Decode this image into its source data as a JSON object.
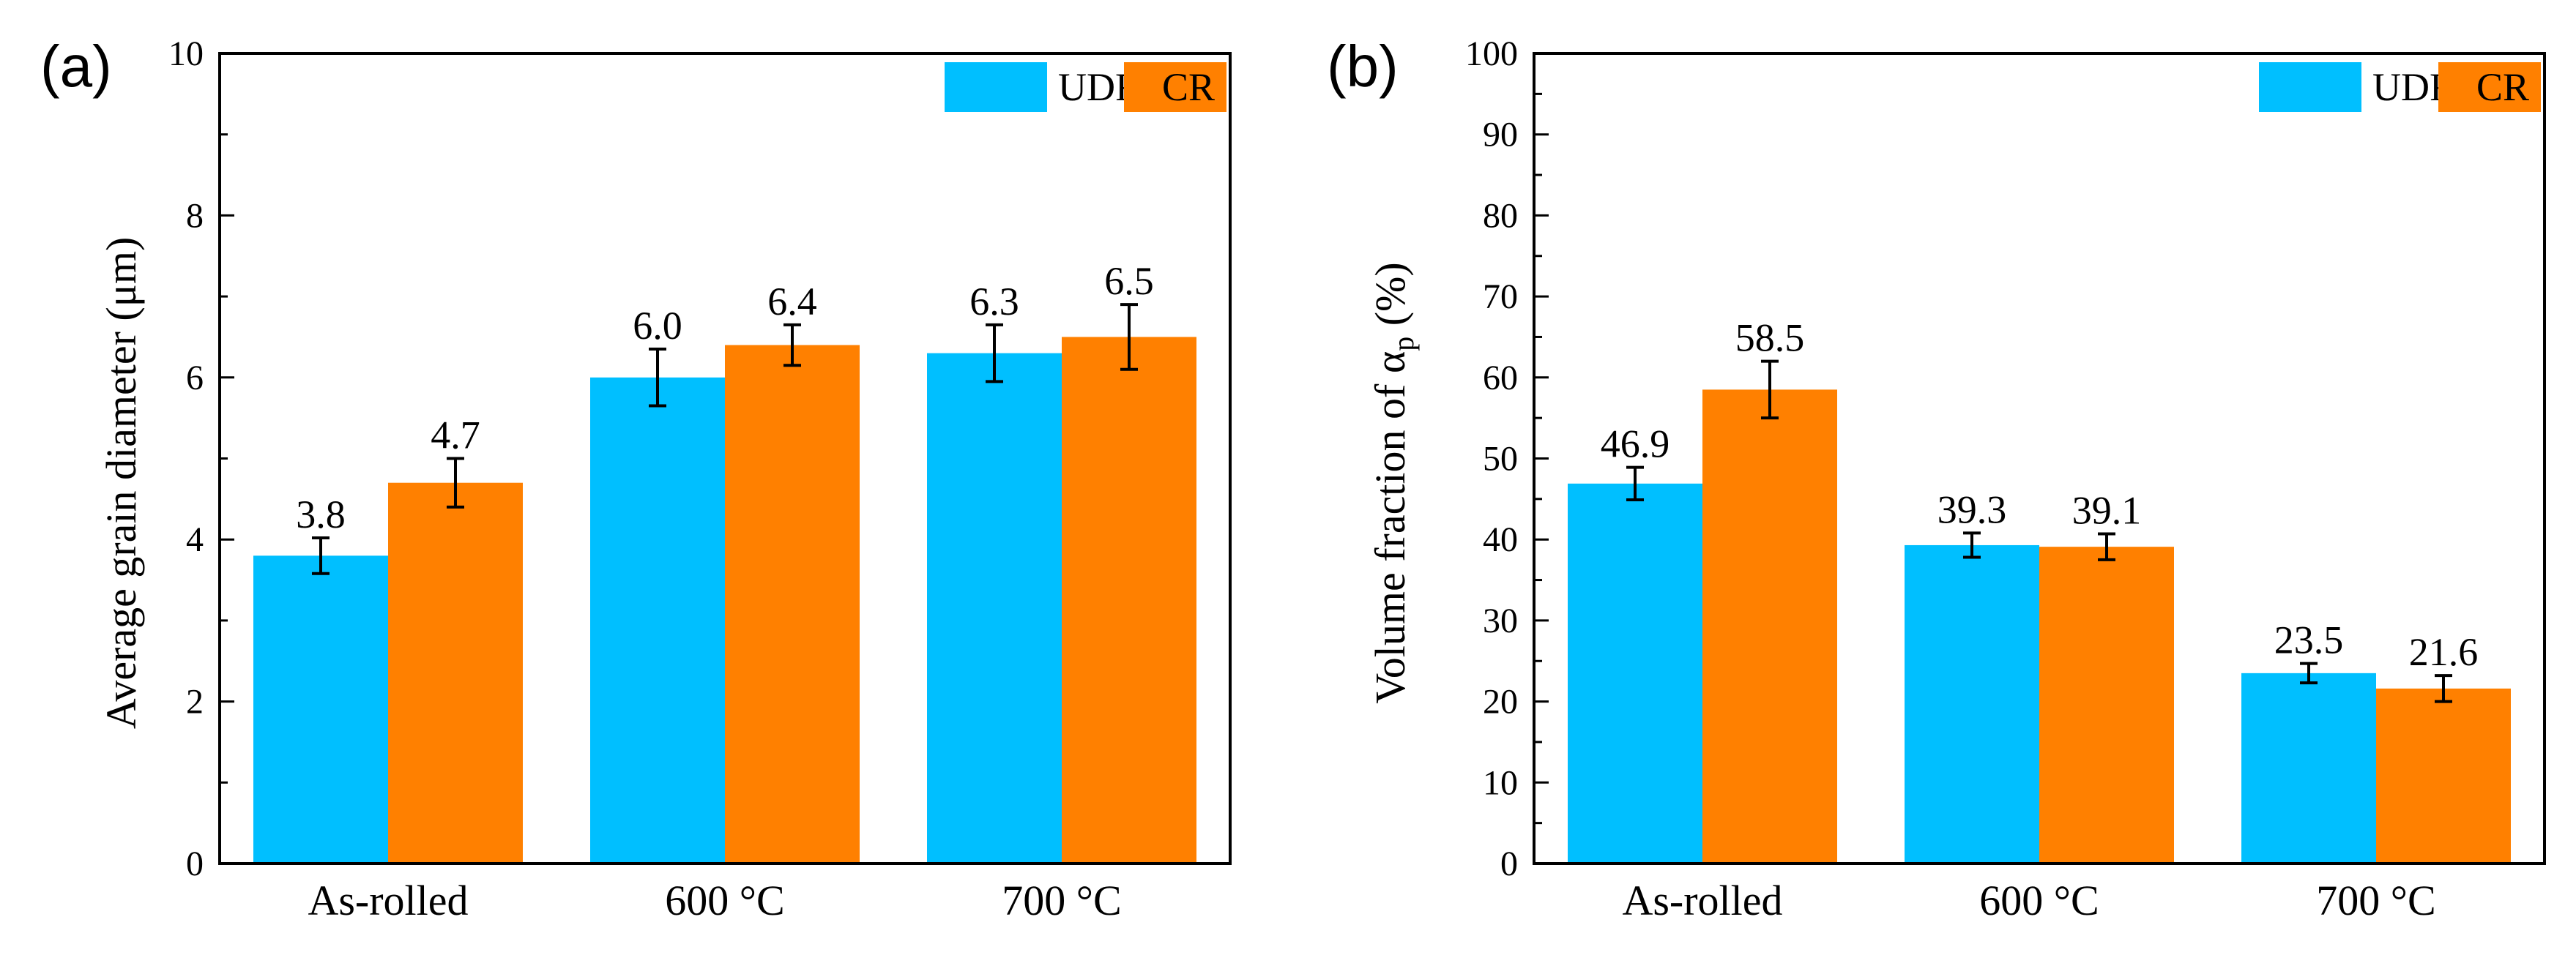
{
  "chart_data": [
    {
      "panel_label": "(a)",
      "type": "bar",
      "categories": [
        "As-rolled",
        "600 °C",
        "700 °C"
      ],
      "series": [
        {
          "name": "UDR",
          "color": "#00BFFF",
          "values": [
            3.8,
            6.0,
            6.3
          ],
          "errors": [
            0.22,
            0.35,
            0.35
          ],
          "labels": [
            "3.8",
            "6.0",
            "6.3"
          ]
        },
        {
          "name": "CR",
          "color": "#FF8000",
          "values": [
            4.7,
            6.4,
            6.5
          ],
          "errors": [
            0.3,
            0.25,
            0.4
          ],
          "labels": [
            "4.7",
            "6.4",
            "6.5"
          ]
        }
      ],
      "ylabel": "Average grain diameter (μm)",
      "ylabel_sub": "",
      "ylabel_tail": "",
      "ylim": [
        0,
        10
      ],
      "yticks": [
        0,
        2,
        4,
        6,
        8,
        10
      ],
      "yticks_labels": [
        "0",
        "2",
        "4",
        "6",
        "8",
        "10"
      ],
      "legend_position": "top-right",
      "grid": false
    },
    {
      "panel_label": "(b)",
      "type": "bar",
      "categories": [
        "As-rolled",
        "600 °C",
        "700 °C"
      ],
      "series": [
        {
          "name": "UDR",
          "color": "#00BFFF",
          "values": [
            46.9,
            39.3,
            23.5
          ],
          "errors": [
            2.0,
            1.5,
            1.2
          ],
          "labels": [
            "46.9",
            "39.3",
            "23.5"
          ]
        },
        {
          "name": "CR",
          "color": "#FF8000",
          "values": [
            58.5,
            39.1,
            21.6
          ],
          "errors": [
            3.5,
            1.6,
            1.6
          ],
          "labels": [
            "58.5",
            "39.1",
            "21.6"
          ]
        }
      ],
      "ylabel": "Volume fraction of α",
      "ylabel_sub": "p",
      "ylabel_tail": " (%)",
      "ylim": [
        0,
        100
      ],
      "yticks": [
        0,
        10,
        20,
        30,
        40,
        50,
        60,
        70,
        80,
        90,
        100
      ],
      "yticks_labels": [
        "0",
        "10",
        "20",
        "30",
        "40",
        "50",
        "60",
        "70",
        "80",
        "90",
        "100"
      ],
      "legend_position": "top-right",
      "grid": false
    }
  ]
}
